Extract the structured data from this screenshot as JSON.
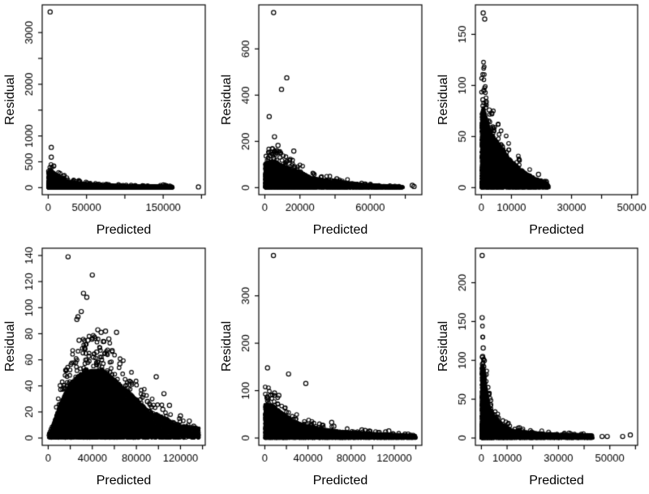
{
  "figure": {
    "type": "residual-scatter-grid",
    "rows": 2,
    "cols": 3,
    "background": "#ffffff"
  },
  "style": {
    "marker": "open-circle",
    "color": "#000000",
    "axis_color": "#000000"
  },
  "chart_data": [
    {
      "type": "scatter",
      "position": "top-left",
      "xlabel": "Predicted",
      "ylabel": "Residual",
      "xlim": [
        0,
        197000
      ],
      "ylim": [
        0,
        3400
      ],
      "xticks": {
        "values": [
          0,
          50000,
          100000,
          150000,
          200000
        ],
        "labels": [
          "0",
          "50000",
          "",
          "150000",
          ""
        ]
      },
      "yticks": {
        "values": [
          0,
          500,
          1000,
          1500,
          2000,
          2500,
          3000
        ],
        "labels": [
          "0",
          "500",
          "1000",
          "",
          "2000",
          "",
          "3000"
        ]
      },
      "mass": {
        "n": 7000,
        "q": 2.2,
        "halo_n": 55,
        "xdensity": [
          [
            0,
            10
          ],
          [
            5000,
            9
          ],
          [
            20000,
            5
          ],
          [
            50000,
            3
          ],
          [
            100000,
            2.2
          ],
          [
            160000,
            2
          ],
          [
            163000,
            0
          ],
          [
            197000,
            0
          ]
        ],
        "envelope": [
          [
            0,
            300
          ],
          [
            4000,
            330
          ],
          [
            8000,
            280
          ],
          [
            15000,
            200
          ],
          [
            25000,
            130
          ],
          [
            35000,
            100
          ],
          [
            50000,
            78
          ],
          [
            70000,
            55
          ],
          [
            90000,
            42
          ],
          [
            110000,
            34
          ],
          [
            130000,
            28
          ],
          [
            150000,
            38
          ],
          [
            162000,
            25
          ]
        ]
      },
      "outliers": [
        [
          2500,
          3400
        ],
        [
          4000,
          780
        ],
        [
          4000,
          590
        ],
        [
          196000,
          15
        ],
        [
          158000,
          12
        ],
        [
          161000,
          10
        ]
      ]
    },
    {
      "type": "scatter",
      "position": "top-middle",
      "xlabel": "Predicted",
      "ylabel": "Residual",
      "xlim": [
        0,
        86000
      ],
      "ylim": [
        0,
        760
      ],
      "xticks": {
        "values": [
          0,
          20000,
          40000,
          60000,
          80000
        ],
        "labels": [
          "0",
          "20000",
          "",
          "60000",
          ""
        ]
      },
      "yticks": {
        "values": [
          0,
          200,
          400,
          600
        ],
        "labels": [
          "0",
          "200",
          "400",
          "600"
        ]
      },
      "mass": {
        "n": 7000,
        "q": 1.8,
        "halo_n": 70,
        "xdensity": [
          [
            0,
            10
          ],
          [
            8000,
            8
          ],
          [
            20000,
            5
          ],
          [
            35000,
            3
          ],
          [
            50000,
            2
          ],
          [
            70000,
            1.5
          ],
          [
            78000,
            1
          ],
          [
            79000,
            0
          ],
          [
            86000,
            0
          ]
        ],
        "envelope": [
          [
            0,
            105
          ],
          [
            3000,
            115
          ],
          [
            7000,
            108
          ],
          [
            12000,
            90
          ],
          [
            16000,
            78
          ],
          [
            20000,
            70
          ],
          [
            26000,
            45
          ],
          [
            33000,
            35
          ],
          [
            40000,
            30
          ],
          [
            48000,
            22
          ],
          [
            56000,
            14
          ],
          [
            66000,
            9
          ],
          [
            78000,
            5
          ]
        ]
      },
      "outliers": [
        [
          5000,
          757
        ],
        [
          12500,
          475
        ],
        [
          9500,
          425
        ],
        [
          2500,
          307
        ],
        [
          5500,
          220
        ],
        [
          7500,
          183
        ],
        [
          6800,
          160
        ],
        [
          16500,
          158
        ],
        [
          6000,
          145
        ],
        [
          8500,
          150
        ],
        [
          84000,
          10
        ],
        [
          85000,
          5
        ],
        [
          24000,
          42
        ],
        [
          26000,
          40
        ],
        [
          41000,
          38
        ],
        [
          38000,
          30
        ],
        [
          44000,
          28
        ]
      ]
    },
    {
      "type": "scatter",
      "position": "top-right",
      "xlabel": "Predicted",
      "ylabel": "Residual",
      "xlim": [
        0,
        50000
      ],
      "ylim": [
        0,
        172
      ],
      "xticks": {
        "values": [
          0,
          10000,
          20000,
          30000,
          40000,
          50000
        ],
        "labels": [
          "0",
          "10000",
          "",
          "30000",
          "",
          "50000"
        ]
      },
      "yticks": {
        "values": [
          0,
          50,
          100,
          150
        ],
        "labels": [
          "0",
          "50",
          "100",
          "150"
        ]
      },
      "mass": {
        "n": 6000,
        "q": 1.6,
        "halo_n": 55,
        "xdensity": [
          [
            0,
            12
          ],
          [
            2000,
            9
          ],
          [
            6000,
            5
          ],
          [
            12000,
            2.5
          ],
          [
            20000,
            1.2
          ],
          [
            22000,
            0.5
          ],
          [
            22500,
            0
          ],
          [
            50000,
            0
          ]
        ],
        "envelope": [
          [
            0,
            72
          ],
          [
            700,
            80
          ],
          [
            2000,
            62
          ],
          [
            4000,
            50
          ],
          [
            7000,
            38
          ],
          [
            10000,
            26
          ],
          [
            14000,
            16
          ],
          [
            18000,
            9
          ],
          [
            22500,
            4
          ]
        ]
      },
      "outliers": [
        [
          600,
          171
        ],
        [
          1100,
          165
        ],
        [
          800,
          95
        ],
        [
          500,
          86
        ],
        [
          1600,
          84
        ],
        [
          2600,
          76
        ],
        [
          3400,
          73
        ],
        [
          6500,
          42
        ],
        [
          7000,
          40
        ],
        [
          5800,
          36
        ],
        [
          8200,
          30
        ],
        [
          12500,
          15
        ],
        [
          19000,
          13
        ],
        [
          21000,
          3
        ]
      ]
    },
    {
      "type": "scatter",
      "position": "bottom-left",
      "xlabel": "Predicted",
      "ylabel": "Residual",
      "xlim": [
        0,
        137000
      ],
      "ylim": [
        0,
        140
      ],
      "xticks": {
        "values": [
          0,
          20000,
          40000,
          60000,
          80000,
          100000,
          120000,
          140000
        ],
        "labels": [
          "0",
          "",
          "40000",
          "",
          "80000",
          "",
          "120000",
          ""
        ]
      },
      "yticks": {
        "values": [
          0,
          20,
          40,
          60,
          80,
          100,
          120,
          140
        ],
        "labels": [
          "0",
          "20",
          "40",
          "60",
          "80",
          "100",
          "120",
          "140"
        ]
      },
      "mass": {
        "n": 10000,
        "q": 1.1,
        "halo_n": 150,
        "xdensity": [
          [
            0,
            0.3
          ],
          [
            5000,
            3
          ],
          [
            15000,
            7
          ],
          [
            25000,
            9
          ],
          [
            35000,
            10
          ],
          [
            45000,
            9
          ],
          [
            55000,
            7.5
          ],
          [
            65000,
            6
          ],
          [
            75000,
            5
          ],
          [
            85000,
            3.5
          ],
          [
            95000,
            2
          ],
          [
            105000,
            1.5
          ],
          [
            120000,
            1
          ],
          [
            137000,
            0.8
          ]
        ],
        "envelope": [
          [
            2000,
            4
          ],
          [
            10000,
            25
          ],
          [
            20000,
            42
          ],
          [
            30000,
            50
          ],
          [
            40000,
            52
          ],
          [
            50000,
            52
          ],
          [
            60000,
            45
          ],
          [
            70000,
            38
          ],
          [
            80000,
            30
          ],
          [
            90000,
            22
          ],
          [
            100000,
            18
          ],
          [
            110000,
            14
          ],
          [
            120000,
            10
          ],
          [
            137000,
            8
          ]
        ]
      },
      "outliers": [
        [
          18000,
          139
        ],
        [
          40000,
          125
        ],
        [
          32000,
          111
        ],
        [
          35000,
          108
        ],
        [
          30000,
          97
        ],
        [
          27000,
          93
        ],
        [
          26000,
          91
        ],
        [
          45000,
          83
        ],
        [
          52000,
          82
        ],
        [
          48000,
          81
        ],
        [
          62000,
          81
        ],
        [
          55000,
          76
        ],
        [
          36000,
          75
        ],
        [
          28000,
          75
        ],
        [
          50000,
          74
        ],
        [
          33000,
          69
        ],
        [
          58000,
          67
        ],
        [
          44000,
          66
        ],
        [
          41000,
          62
        ],
        [
          65000,
          57
        ],
        [
          98000,
          47
        ],
        [
          105000,
          34
        ],
        [
          90000,
          28
        ],
        [
          110000,
          25
        ],
        [
          104000,
          22
        ],
        [
          120000,
          17
        ],
        [
          128000,
          13
        ],
        [
          132000,
          9
        ],
        [
          135000,
          7
        ]
      ]
    },
    {
      "type": "scatter",
      "position": "bottom-middle",
      "xlabel": "Predicted",
      "ylabel": "Residual",
      "xlim": [
        0,
        140000
      ],
      "ylim": [
        0,
        385
      ],
      "xticks": {
        "values": [
          0,
          20000,
          40000,
          60000,
          80000,
          100000,
          120000,
          140000
        ],
        "labels": [
          "0",
          "",
          "40000",
          "",
          "80000",
          "",
          "120000",
          ""
        ]
      },
      "yticks": {
        "values": [
          0,
          100,
          200,
          300
        ],
        "labels": [
          "0",
          "100",
          "200",
          "300"
        ]
      },
      "mass": {
        "n": 8000,
        "q": 1.7,
        "halo_n": 60,
        "xdensity": [
          [
            0,
            10
          ],
          [
            10000,
            9
          ],
          [
            30000,
            5
          ],
          [
            60000,
            3
          ],
          [
            100000,
            2
          ],
          [
            140000,
            1.5
          ]
        ],
        "envelope": [
          [
            0,
            70
          ],
          [
            4000,
            72
          ],
          [
            8000,
            68
          ],
          [
            12000,
            60
          ],
          [
            18000,
            50
          ],
          [
            25000,
            38
          ],
          [
            35000,
            28
          ],
          [
            50000,
            20
          ],
          [
            70000,
            14
          ],
          [
            90000,
            11
          ],
          [
            110000,
            8
          ],
          [
            125000,
            7
          ],
          [
            140000,
            5
          ]
        ]
      },
      "outliers": [
        [
          8000,
          385
        ],
        [
          2500,
          148
        ],
        [
          22000,
          135
        ],
        [
          38000,
          115
        ],
        [
          9000,
          95
        ],
        [
          13000,
          90
        ],
        [
          2000,
          85
        ],
        [
          3000,
          83
        ],
        [
          62000,
          33
        ],
        [
          64000,
          25
        ],
        [
          50000,
          22
        ],
        [
          47000,
          20
        ],
        [
          90000,
          17
        ],
        [
          93000,
          16
        ],
        [
          115000,
          15
        ],
        [
          112000,
          13
        ],
        [
          130000,
          8
        ],
        [
          135000,
          6
        ],
        [
          138000,
          4
        ]
      ]
    },
    {
      "type": "scatter",
      "position": "bottom-right",
      "xlabel": "Predicted",
      "ylabel": "Residual",
      "xlim": [
        0,
        58500
      ],
      "ylim": [
        0,
        235
      ],
      "xticks": {
        "values": [
          0,
          10000,
          20000,
          30000,
          40000,
          50000,
          60000
        ],
        "labels": [
          "0",
          "10000",
          "",
          "30000",
          "",
          "50000",
          ""
        ]
      },
      "yticks": {
        "values": [
          0,
          50,
          100,
          150,
          200
        ],
        "labels": [
          "0",
          "50",
          "100",
          "150",
          "200"
        ]
      },
      "mass": {
        "n": 7000,
        "q": 2.0,
        "halo_n": 50,
        "xdensity": [
          [
            0,
            14
          ],
          [
            1500,
            10
          ],
          [
            4000,
            5
          ],
          [
            8000,
            2.5
          ],
          [
            15000,
            1.5
          ],
          [
            25000,
            1
          ],
          [
            43000,
            0.8
          ],
          [
            43500,
            0
          ],
          [
            58500,
            0
          ]
        ],
        "envelope": [
          [
            0,
            90
          ],
          [
            500,
            95
          ],
          [
            1000,
            88
          ],
          [
            2000,
            60
          ],
          [
            3000,
            40
          ],
          [
            5000,
            28
          ],
          [
            8000,
            18
          ],
          [
            12000,
            10
          ],
          [
            20000,
            7
          ],
          [
            30000,
            5
          ],
          [
            43000,
            4
          ]
        ]
      },
      "outliers": [
        [
          300,
          235
        ],
        [
          300,
          155
        ],
        [
          700,
          116
        ],
        [
          500,
          105
        ],
        [
          400,
          95
        ],
        [
          900,
          92
        ],
        [
          5000,
          30
        ],
        [
          6000,
          27
        ],
        [
          9000,
          15
        ],
        [
          14000,
          8
        ],
        [
          40000,
          3
        ],
        [
          42000,
          3
        ],
        [
          47000,
          2
        ],
        [
          49000,
          2
        ],
        [
          55000,
          2
        ],
        [
          58000,
          4
        ]
      ]
    }
  ]
}
